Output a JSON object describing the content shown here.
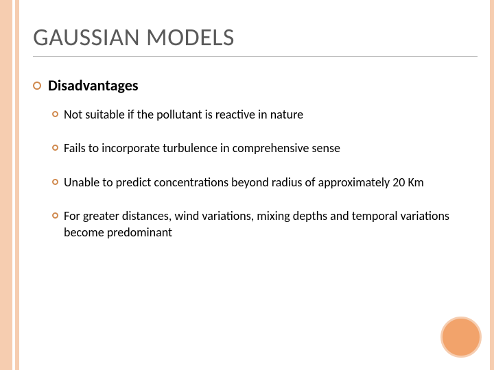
{
  "slide": {
    "title": "GAUSSIAN MODELS",
    "subhead": "Disadvantages",
    "items": [
      "Not suitable if the pollutant is reactive in nature",
      "Fails to incorporate turbulence in comprehensive sense",
      "Unable to predict concentrations beyond radius of approximately 20 Km",
      "For greater distances, wind variations, mixing depths and temporal variations become predominant"
    ]
  },
  "styling": {
    "accent_light": "#f6cdb0",
    "accent_dark": "#f2a36b",
    "bullet_color": "#d08a4f",
    "title_color": "#595959",
    "text_color": "#000000",
    "background": "#ffffff",
    "title_fontsize": 36,
    "subhead_fontsize": 22,
    "item_fontsize": 18
  }
}
